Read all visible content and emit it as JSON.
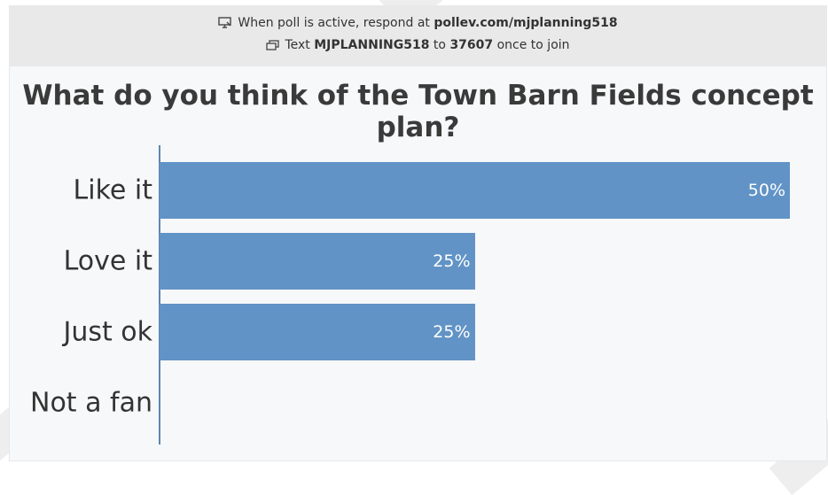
{
  "header": {
    "line1_prefix": "When poll is active, respond at ",
    "line1_url": "pollev.com/mjplanning518",
    "line2_prefix": "Text ",
    "line2_code": "MJPLANNING518",
    "line2_mid": " to ",
    "line2_number": "37607",
    "line2_suffix": " once to join",
    "line1_icon": "screen-icon",
    "line2_icon": "message-icon"
  },
  "question": "What do you think of the Town Barn Fields concept plan?",
  "colors": {
    "bar": "#6193c6",
    "axis": "#5b87b4",
    "header_bg": "#e9e9e9"
  },
  "chart_data": {
    "type": "bar",
    "orientation": "horizontal",
    "title": "What do you think of the Town Barn Fields concept plan?",
    "categories": [
      "Like it",
      "Love it",
      "Just ok",
      "Not a fan"
    ],
    "values": [
      50,
      25,
      25,
      0
    ],
    "value_labels": [
      "50%",
      "25%",
      "25%",
      ""
    ],
    "unit": "%",
    "xlim": [
      0,
      50
    ],
    "grid": false,
    "legend": "none"
  }
}
